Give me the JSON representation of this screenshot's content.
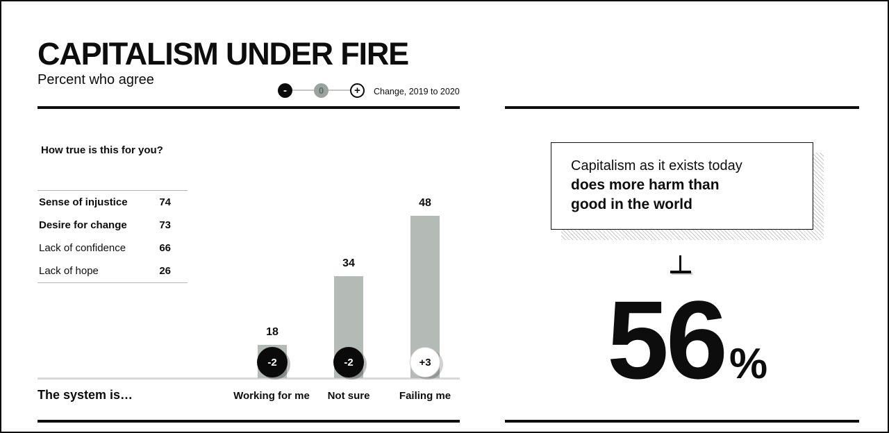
{
  "header": {
    "title": "CAPITALISM UNDER FIRE",
    "subtitle": "Percent who agree",
    "legend": {
      "minus": "-",
      "zero": "0",
      "plus": "+",
      "label": "Change, 2019 to 2020"
    }
  },
  "chart_data": {
    "type": "bar",
    "title": "CAPITALISM UNDER FIRE",
    "subtitle": "Percent who agree",
    "question": "How true is this for you?",
    "agreement_table": {
      "rows": [
        {
          "label": "Sense of injustice",
          "value": 74
        },
        {
          "label": "Desire for change",
          "value": 73
        },
        {
          "label": "Lack of confidence",
          "value": 66
        },
        {
          "label": "Lack of hope",
          "value": 26
        }
      ]
    },
    "bar_chart": {
      "axis_prefix": "The system is…",
      "categories": [
        "Working for me",
        "Not sure",
        "Failing me"
      ],
      "values": [
        18,
        34,
        48
      ],
      "changes": [
        "-2",
        "-2",
        "+3"
      ],
      "change_legend": "Change, 2019 to 2020",
      "ylim": [
        0,
        50
      ],
      "grid": false,
      "legend_position": "top-right"
    },
    "headline": {
      "statement_regular": "Capitalism as it exists today",
      "statement_bold_line1": "does more harm than",
      "statement_bold_line2": "good in the world",
      "stat_value": "56",
      "stat_unit": "%"
    }
  },
  "colors": {
    "bar_fill": "#b4bab6",
    "negative_badge": "#0a0a0a",
    "positive_badge": "#ffffff",
    "rule": "#0d0d0d",
    "baseline": "#d9d9d9"
  }
}
